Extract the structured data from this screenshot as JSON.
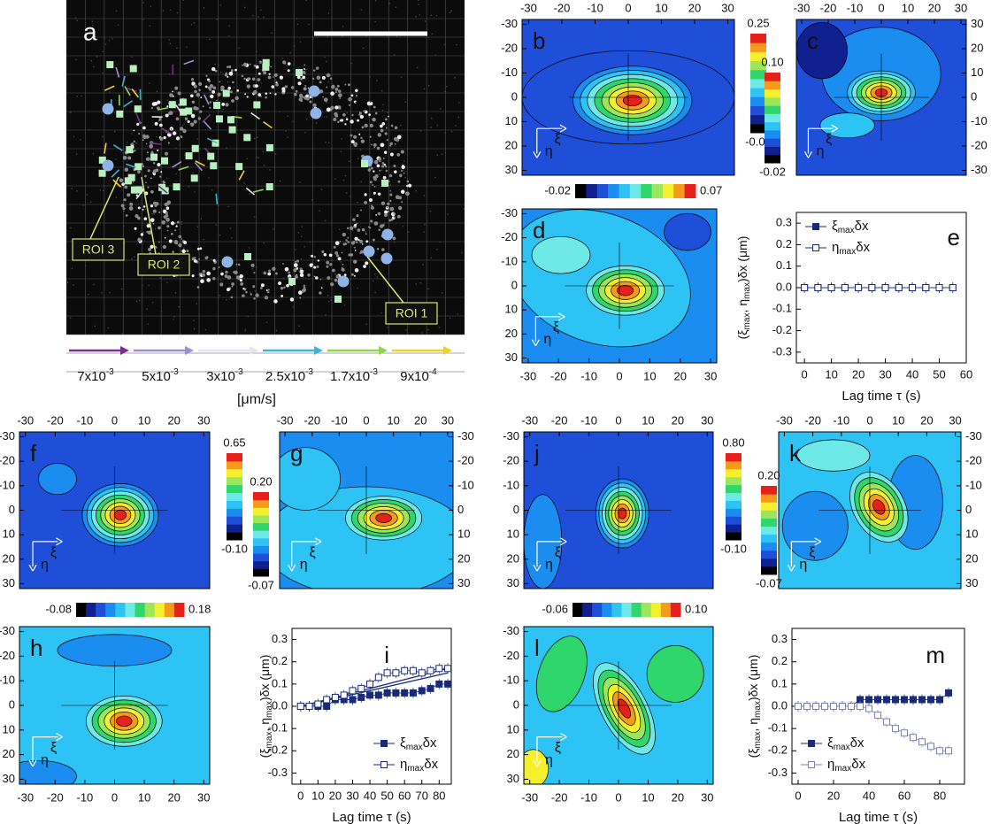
{
  "chart_data": [
    {
      "type": "image",
      "label": "a",
      "rois": [
        "ROI 3",
        "ROI 2",
        "ROI 1"
      ],
      "velocity_legend": [
        {
          "mantissa": "7x10",
          "exponent": "-3",
          "color": "#7b2d8e"
        },
        {
          "mantissa": "5x10",
          "exponent": "-3",
          "color": "#9b8fd0"
        },
        {
          "mantissa": "3x10",
          "exponent": "-3",
          "color": "#e4e4ee"
        },
        {
          "mantissa": "2.5x10",
          "exponent": "-3",
          "color": "#3cb4d8"
        },
        {
          "mantissa": "1.7x10",
          "exponent": "-3",
          "color": "#8ed64a"
        },
        {
          "mantissa": "9x10",
          "exponent": "-4",
          "color": "#f2d21e"
        }
      ],
      "unit": "[μm/s]"
    },
    {
      "type": "contour",
      "label": "b",
      "xlim": [
        -32,
        32
      ],
      "ylim": [
        32,
        -32
      ],
      "xticks": [
        -30,
        -20,
        -10,
        0,
        10,
        20,
        30
      ],
      "yticks": [
        -30,
        -20,
        -10,
        0,
        10,
        20,
        30
      ],
      "colorbar_ticks": [
        -0.03,
        0.25
      ],
      "frame_symbols": [
        "η",
        "ξ"
      ]
    },
    {
      "type": "contour",
      "label": "c",
      "xlim": [
        -32,
        32
      ],
      "ylim": [
        -32,
        32
      ],
      "xticks": [
        -30,
        -20,
        -10,
        0,
        10,
        20,
        30
      ],
      "yticks": [
        -30,
        -20,
        -10,
        0,
        10,
        20,
        30
      ],
      "colorbar_ticks": [
        -0.02,
        {
          "value": 0.1,
          "label": "0.10"
        }
      ],
      "frame_symbols": [
        "η",
        "ξ"
      ]
    },
    {
      "type": "contour",
      "label": "d",
      "xlim": [
        -32,
        32
      ],
      "ylim": [
        32,
        -32
      ],
      "xticks": [
        -30,
        -20,
        -10,
        0,
        10,
        20,
        30
      ],
      "yticks": [
        -30,
        -20,
        -10,
        0,
        10,
        20,
        30
      ],
      "colorbar_ticks": [
        -0.02,
        0.07
      ],
      "frame_symbols": [
        "η",
        "ξ"
      ]
    },
    {
      "type": "scatter",
      "label": "e",
      "legend": "upper left",
      "x": [
        0,
        5,
        10,
        15,
        20,
        25,
        30,
        35,
        40,
        45,
        50,
        55
      ],
      "series": [
        {
          "name": "ξ",
          "name_sub": "max",
          "name_suffix": "δx",
          "marker": "filled",
          "color": "#1a2a7a",
          "values": [
            0,
            0,
            0,
            0,
            0,
            0,
            0,
            0,
            0,
            0,
            0,
            0
          ]
        },
        {
          "name": "η",
          "name_sub": "max",
          "name_suffix": "δx",
          "marker": "open",
          "color": "#1a2a7a",
          "values": [
            0,
            0,
            0,
            0,
            0,
            0,
            0,
            0,
            0,
            0,
            0,
            0
          ]
        }
      ],
      "xlabel": "Lag time τ (s)",
      "ylabel_parts": [
        "(ξ",
        "max",
        ", η",
        "max",
        ")δx (μm)"
      ],
      "xlim": [
        -3,
        60
      ],
      "xticks": [
        0,
        10,
        20,
        30,
        40,
        50,
        60
      ],
      "ylim": [
        -0.35,
        0.35
      ],
      "yticks": [
        -0.3,
        -0.2,
        -0.1,
        {
          "value": 0,
          "label": "0.0"
        },
        0.1,
        0.2,
        0.3
      ]
    },
    {
      "type": "contour",
      "label": "f",
      "xlim": [
        -32,
        32
      ],
      "ylim": [
        32,
        -32
      ],
      "xticks": [
        -30,
        -20,
        -10,
        0,
        10,
        20,
        30
      ],
      "yticks": [
        -30,
        -20,
        -10,
        0,
        10,
        20,
        30
      ],
      "colorbar_ticks": [
        {
          "value": -0.1,
          "label": "-0.10"
        },
        0.65
      ],
      "frame_symbols": [
        "η",
        "ξ"
      ]
    },
    {
      "type": "contour",
      "label": "g",
      "xlim": [
        -32,
        32
      ],
      "ylim": [
        32,
        -32
      ],
      "xticks": [
        -30,
        -20,
        -10,
        0,
        10,
        20,
        30
      ],
      "yticks": [
        -30,
        -20,
        -10,
        0,
        10,
        20,
        30
      ],
      "colorbar_ticks": [
        -0.07,
        {
          "value": 0.2,
          "label": "0.20"
        }
      ],
      "frame_symbols": [
        "η",
        "ξ"
      ]
    },
    {
      "type": "contour",
      "label": "h",
      "xlim": [
        -32,
        32
      ],
      "ylim": [
        32,
        -32
      ],
      "xticks": [
        -30,
        -20,
        -10,
        0,
        10,
        20,
        30
      ],
      "yticks": [
        -30,
        -20,
        -10,
        0,
        10,
        20,
        30
      ],
      "colorbar_ticks": [
        -0.08,
        0.18
      ],
      "frame_symbols": [
        "η",
        "ξ"
      ]
    },
    {
      "type": "scatter",
      "label": "i",
      "legend": "lower right",
      "x": [
        0,
        5,
        10,
        15,
        20,
        25,
        30,
        35,
        40,
        45,
        50,
        55,
        60,
        65,
        70,
        75,
        80,
        85
      ],
      "series": [
        {
          "name": "ξ",
          "name_sub": "max",
          "name_suffix": "δx",
          "marker": "filled",
          "color": "#1a2a7a",
          "values": [
            0,
            0,
            0,
            0,
            0.03,
            0.03,
            0.03,
            0.04,
            0.05,
            0.05,
            0.06,
            0.06,
            0.06,
            0.06,
            0.07,
            0.08,
            0.1,
            0.1
          ]
        },
        {
          "name": "η",
          "name_sub": "max",
          "name_suffix": "δx",
          "marker": "open",
          "color": "#1a2a7a",
          "values": [
            0,
            0,
            0.01,
            0.03,
            0.04,
            0.05,
            0.07,
            0.08,
            0.1,
            0.13,
            0.15,
            0.15,
            0.16,
            0.16,
            0.15,
            0.16,
            0.17,
            0.17
          ]
        }
      ],
      "fits": [
        {
          "x": [
            0,
            85
          ],
          "values": [
            0,
            0.17
          ]
        },
        {
          "x": [
            0,
            85
          ],
          "values": [
            0,
            0.15
          ]
        }
      ],
      "xlabel": "Lag time τ (s)",
      "ylabel_parts": [
        "(ξ",
        "max",
        ", η",
        "max",
        ")δx (μm)"
      ],
      "xlim": [
        -5,
        87
      ],
      "xticks": [
        0,
        10,
        20,
        30,
        40,
        50,
        60,
        70,
        80
      ],
      "ylim": [
        -0.35,
        0.35
      ],
      "yticks": [
        -0.3,
        -0.2,
        -0.1,
        {
          "value": 0,
          "label": "0.0"
        },
        0.1,
        0.2,
        0.3
      ]
    },
    {
      "type": "contour",
      "label": "j",
      "xlim": [
        -32,
        32
      ],
      "ylim": [
        32,
        -32
      ],
      "xticks": [
        -30,
        -20,
        -10,
        0,
        10,
        20,
        30
      ],
      "yticks": [
        -30,
        -20,
        -10,
        0,
        10,
        20,
        30
      ],
      "colorbar_ticks": [
        {
          "value": -0.1,
          "label": "-0.10"
        },
        {
          "value": 0.8,
          "label": "0.80"
        }
      ],
      "frame_symbols": [
        "η",
        "ξ"
      ]
    },
    {
      "type": "contour",
      "label": "k",
      "xlim": [
        -32,
        32
      ],
      "ylim": [
        32,
        -32
      ],
      "xticks": [
        -30,
        -20,
        -10,
        0,
        10,
        20,
        30
      ],
      "yticks": [
        -30,
        -20,
        -10,
        0,
        10,
        20,
        30
      ],
      "colorbar_ticks": [
        -0.07,
        {
          "value": 0.2,
          "label": "0.20"
        }
      ],
      "frame_symbols": [
        "η",
        "ξ"
      ]
    },
    {
      "type": "contour",
      "label": "l",
      "xlim": [
        -32,
        32
      ],
      "ylim": [
        32,
        -32
      ],
      "xticks": [
        -30,
        -20,
        -10,
        0,
        10,
        20,
        30
      ],
      "yticks": [
        -30,
        -20,
        -10,
        0,
        10,
        20,
        30
      ],
      "colorbar_ticks": [
        -0.06,
        {
          "value": 0.1,
          "label": "0.10"
        }
      ],
      "frame_symbols": [
        "η",
        "ξ"
      ]
    },
    {
      "type": "scatter",
      "label": "m",
      "legend": "lower left",
      "x": [
        0,
        5,
        10,
        15,
        20,
        25,
        30,
        35,
        40,
        45,
        50,
        55,
        60,
        65,
        70,
        75,
        80,
        85
      ],
      "series": [
        {
          "name": "ξ",
          "name_sub": "max",
          "name_suffix": "δx",
          "marker": "filled",
          "color": "#1a2a7a",
          "values": [
            0,
            0,
            0,
            0,
            0,
            0,
            0,
            0.03,
            0.03,
            0.03,
            0.03,
            0.03,
            0.03,
            0.03,
            0.03,
            0.03,
            0.03,
            0.06
          ]
        },
        {
          "name": "η",
          "name_sub": "max",
          "name_suffix": "δx",
          "marker": "open",
          "color": "#7a80b8",
          "values": [
            0,
            0,
            0,
            0,
            0,
            0,
            0,
            0,
            -0.01,
            -0.04,
            -0.07,
            -0.1,
            -0.12,
            -0.14,
            -0.16,
            -0.18,
            -0.2,
            -0.2
          ]
        }
      ],
      "xlabel": "Lag time τ (s)",
      "ylabel_parts": [
        "(ξ",
        "max",
        ", η",
        "max",
        ")δx (μm)"
      ],
      "xlim": [
        -3.5,
        94
      ],
      "xticks": [
        0,
        20,
        40,
        60,
        80
      ],
      "ylim": [
        -0.35,
        0.35
      ],
      "yticks": [
        -0.3,
        -0.2,
        -0.1,
        {
          "value": 0,
          "label": "0.0"
        },
        0.1,
        0.2,
        0.3
      ]
    }
  ]
}
